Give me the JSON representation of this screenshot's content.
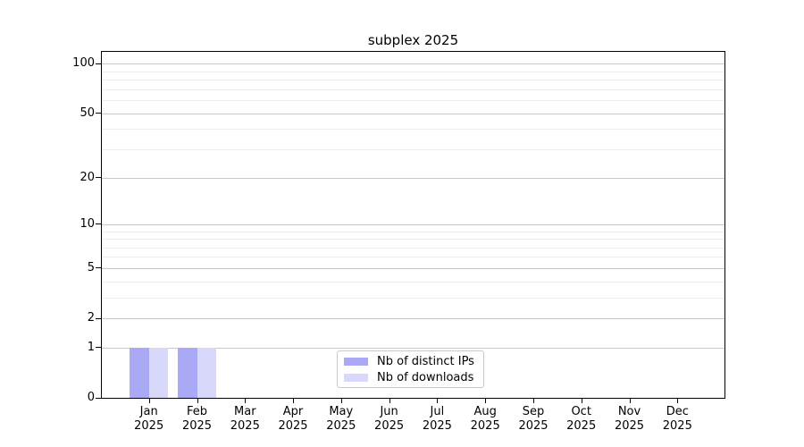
{
  "title": "subplex 2025",
  "chart_data": {
    "type": "bar",
    "title": "subplex 2025",
    "categories": [
      "Jan",
      "Feb",
      "Mar",
      "Apr",
      "May",
      "Jun",
      "Jul",
      "Aug",
      "Sep",
      "Oct",
      "Nov",
      "Dec"
    ],
    "year_label": "2025",
    "series": [
      {
        "name": "Nb of distinct IPs",
        "color": "#a9a9f5",
        "values": [
          1,
          1,
          0,
          0,
          0,
          0,
          0,
          0,
          0,
          0,
          0,
          0
        ]
      },
      {
        "name": "Nb of downloads",
        "color": "#d8d8fa",
        "values": [
          1,
          1,
          0,
          0,
          0,
          0,
          0,
          0,
          0,
          0,
          0,
          0
        ]
      }
    ],
    "yscale": "log1p",
    "yticks": [
      0,
      1,
      2,
      5,
      10,
      20,
      50,
      100
    ],
    "ytick_labels": [
      "0",
      "1",
      "2",
      "5",
      "10",
      "20",
      "50",
      "100"
    ],
    "yticks_minor": [
      3,
      4,
      6,
      7,
      8,
      9,
      30,
      40,
      60,
      70,
      80,
      90
    ],
    "ylim": [
      0,
      118
    ],
    "grid": "horizontal major+minor",
    "legend_position": "lower center"
  },
  "colors": {
    "grid_major": "#c9c9c9",
    "grid_minor": "#ededed",
    "axis": "#000000",
    "legend_border": "#c9c9c9"
  }
}
